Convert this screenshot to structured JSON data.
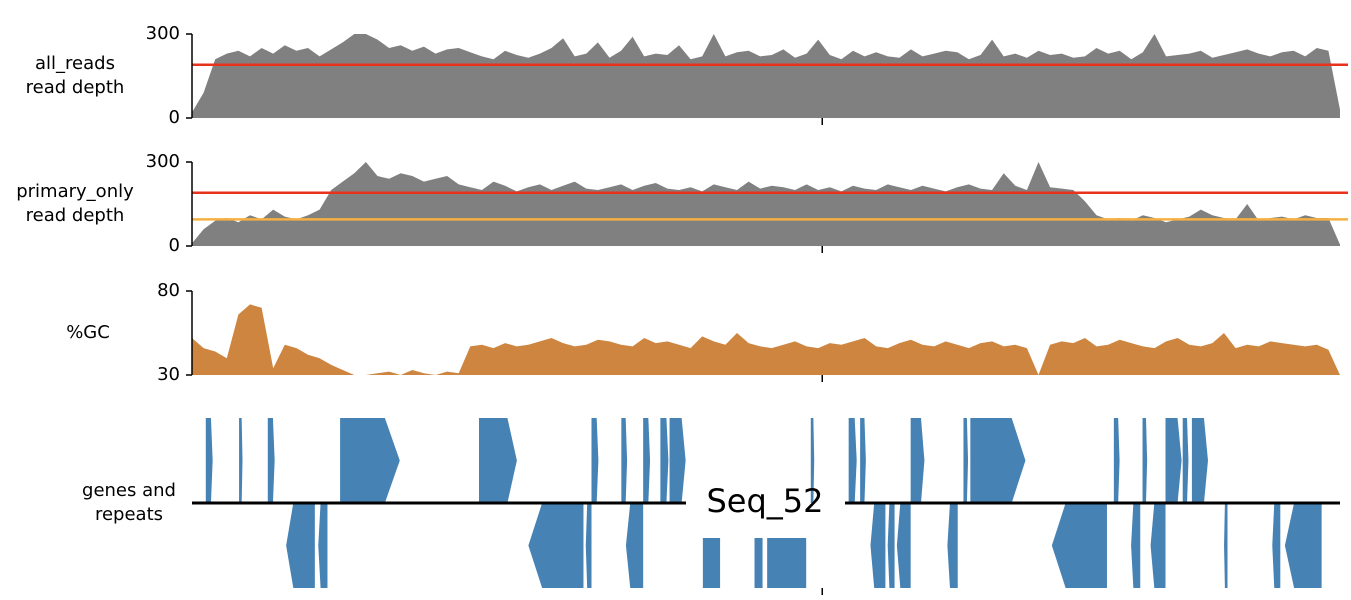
{
  "chart_data": [
    {
      "type": "area",
      "ylabel": [
        "all_reads",
        "read depth"
      ],
      "color": "#808080",
      "ylim": [
        0,
        300
      ],
      "yticks": [
        0,
        300
      ],
      "xlim": [
        0,
        1000
      ],
      "xticks": [
        549
      ],
      "hlines": [
        {
          "value": 190,
          "color": "#e8321e"
        }
      ],
      "values": [
        20,
        90,
        210,
        230,
        240,
        220,
        250,
        230,
        260,
        240,
        250,
        220,
        245,
        270,
        300,
        300,
        280,
        250,
        260,
        240,
        255,
        230,
        245,
        250,
        235,
        220,
        210,
        240,
        225,
        215,
        230,
        250,
        285,
        220,
        230,
        270,
        215,
        240,
        290,
        220,
        230,
        225,
        260,
        210,
        220,
        300,
        220,
        235,
        240,
        220,
        225,
        245,
        215,
        230,
        280,
        225,
        210,
        240,
        220,
        235,
        220,
        215,
        245,
        220,
        230,
        240,
        235,
        210,
        225,
        280,
        220,
        230,
        215,
        240,
        225,
        230,
        215,
        220,
        250,
        230,
        240,
        210,
        235,
        300,
        220,
        225,
        230,
        240,
        215,
        225,
        235,
        245,
        230,
        220,
        235,
        240,
        220,
        250,
        240,
        30
      ]
    },
    {
      "type": "area",
      "ylabel": [
        "primary_only",
        "read depth"
      ],
      "color": "#808080",
      "ylim": [
        0,
        300
      ],
      "yticks": [
        0,
        300
      ],
      "xlim": [
        0,
        1000
      ],
      "xticks": [
        549
      ],
      "hlines": [
        {
          "value": 190,
          "color": "#e8321e"
        },
        {
          "value": 95,
          "color": "#f5b042"
        }
      ],
      "values": [
        10,
        60,
        90,
        100,
        85,
        110,
        95,
        130,
        105,
        95,
        110,
        130,
        200,
        230,
        260,
        300,
        250,
        240,
        260,
        250,
        230,
        240,
        250,
        220,
        210,
        200,
        230,
        215,
        195,
        210,
        220,
        200,
        215,
        230,
        205,
        200,
        210,
        220,
        200,
        215,
        225,
        205,
        200,
        210,
        195,
        220,
        210,
        200,
        230,
        205,
        215,
        210,
        200,
        220,
        200,
        210,
        195,
        215,
        205,
        200,
        220,
        210,
        200,
        215,
        205,
        195,
        210,
        220,
        205,
        200,
        260,
        215,
        200,
        300,
        210,
        205,
        200,
        160,
        110,
        95,
        100,
        90,
        110,
        100,
        85,
        95,
        105,
        130,
        110,
        100,
        95,
        150,
        90,
        100,
        105,
        95,
        110,
        100,
        100,
        5
      ]
    },
    {
      "type": "area",
      "ylabel": [
        "%GC"
      ],
      "color": "#cd853f",
      "ylim": [
        30,
        80
      ],
      "yticks": [
        30,
        80
      ],
      "xlim": [
        0,
        1000
      ],
      "xticks": [
        549
      ],
      "hlines": [],
      "values": [
        52,
        46,
        44,
        40,
        66,
        72,
        70,
        34,
        48,
        46,
        42,
        40,
        36,
        33,
        30,
        30,
        31,
        32,
        30,
        33,
        31,
        30,
        32,
        31,
        47,
        48,
        46,
        49,
        47,
        48,
        50,
        52,
        49,
        47,
        48,
        51,
        50,
        48,
        47,
        52,
        49,
        50,
        48,
        46,
        53,
        50,
        48,
        55,
        49,
        47,
        46,
        48,
        50,
        47,
        46,
        49,
        48,
        50,
        52,
        47,
        46,
        49,
        51,
        48,
        47,
        50,
        48,
        46,
        49,
        50,
        47,
        48,
        46,
        30,
        48,
        50,
        49,
        52,
        47,
        48,
        51,
        49,
        47,
        46,
        50,
        52,
        48,
        47,
        49,
        55,
        46,
        48,
        47,
        50,
        49,
        48,
        47,
        48,
        45,
        30
      ]
    },
    {
      "type": "gene",
      "ylabel": [
        "genes and",
        "repeats"
      ],
      "title": "Seq_52",
      "color": "#4682b4",
      "xlim": [
        0,
        1000
      ],
      "xticks": [
        549
      ],
      "features": [
        {
          "start": 12,
          "end": 18,
          "strand": 1
        },
        {
          "start": 41,
          "end": 44,
          "strand": 1
        },
        {
          "start": 66,
          "end": 72,
          "strand": 1
        },
        {
          "start": 129,
          "end": 181,
          "strand": 1
        },
        {
          "start": 250,
          "end": 283,
          "strand": 1
        },
        {
          "start": 348,
          "end": 354,
          "strand": 1
        },
        {
          "start": 374,
          "end": 379,
          "strand": 1
        },
        {
          "start": 393,
          "end": 399,
          "strand": 1
        },
        {
          "start": 408,
          "end": 415,
          "strand": 1
        },
        {
          "start": 416,
          "end": 430,
          "strand": 1
        },
        {
          "start": 539,
          "end": 542,
          "strand": 1
        },
        {
          "start": 572,
          "end": 579,
          "strand": 1
        },
        {
          "start": 582,
          "end": 587,
          "strand": 1
        },
        {
          "start": 626,
          "end": 638,
          "strand": 1
        },
        {
          "start": 672,
          "end": 676,
          "strand": 1
        },
        {
          "start": 678,
          "end": 726,
          "strand": 1
        },
        {
          "start": 803,
          "end": 808,
          "strand": 1
        },
        {
          "start": 828,
          "end": 832,
          "strand": 1
        },
        {
          "start": 848,
          "end": 862,
          "strand": 1
        },
        {
          "start": 863,
          "end": 868,
          "strand": 1
        },
        {
          "start": 871,
          "end": 885,
          "strand": 1
        },
        {
          "start": 82,
          "end": 107,
          "strand": -1
        },
        {
          "start": 110,
          "end": 118,
          "strand": -1
        },
        {
          "start": 293,
          "end": 341,
          "strand": -1
        },
        {
          "start": 343,
          "end": 348,
          "strand": -1
        },
        {
          "start": 378,
          "end": 393,
          "strand": -1
        },
        {
          "start": 591,
          "end": 604,
          "strand": -1
        },
        {
          "start": 606,
          "end": 612,
          "strand": -1
        },
        {
          "start": 614,
          "end": 626,
          "strand": -1
        },
        {
          "start": 658,
          "end": 667,
          "strand": -1
        },
        {
          "start": 749,
          "end": 797,
          "strand": -1
        },
        {
          "start": 818,
          "end": 826,
          "strand": -1
        },
        {
          "start": 835,
          "end": 848,
          "strand": -1
        },
        {
          "start": 899,
          "end": 902,
          "strand": -1
        },
        {
          "start": 941,
          "end": 948,
          "strand": -1
        },
        {
          "start": 952,
          "end": 984,
          "strand": -1
        },
        {
          "start": 445,
          "end": 460,
          "strand": 0
        },
        {
          "start": 490,
          "end": 497,
          "strand": 0
        },
        {
          "start": 501,
          "end": 535,
          "strand": 0
        }
      ]
    }
  ]
}
